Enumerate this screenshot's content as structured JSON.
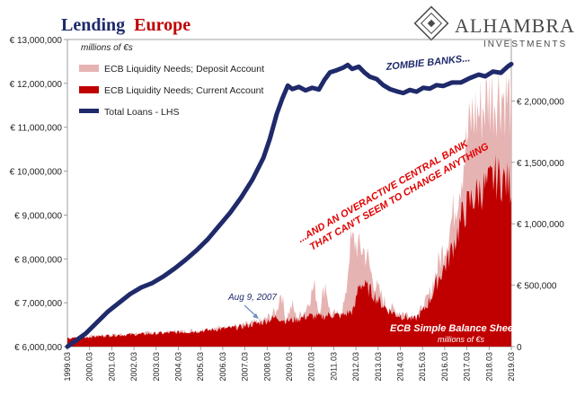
{
  "chart_data": {
    "type": "area",
    "title": {
      "prefix": "Lending",
      "highlight": "Europe",
      "prefix_color": "#1f2a6b",
      "highlight_color": "#c00000"
    },
    "unit_note_top": "millions of €s",
    "unit_note_bottom": "millions of €s",
    "brand": {
      "name": "ALHAMBRA",
      "tagline": "INVESTMENTS",
      "color": "#4a4a4a"
    },
    "legend": {
      "placement": "top-left",
      "items": [
        {
          "label": "ECB Liquidity Needs; Deposit Account",
          "color": "#e6b3b3",
          "kind": "area"
        },
        {
          "label": "ECB Liquidity Needs; Current Account",
          "color": "#c00000",
          "kind": "area"
        },
        {
          "label": "Total Loans - LHS",
          "color": "#1f2a6b",
          "kind": "line"
        }
      ]
    },
    "left_axis": {
      "min": 6000000,
      "max": 13000000,
      "ticks": [
        {
          "value": 6000000,
          "label": "€ 6,000,000"
        },
        {
          "value": 7000000,
          "label": "€ 7,000,000"
        },
        {
          "value": 8000000,
          "label": "€ 8,000,000"
        },
        {
          "value": 9000000,
          "label": "€ 9,000,000"
        },
        {
          "value": 10000000,
          "label": "€ 10,000,000"
        },
        {
          "value": 11000000,
          "label": "€ 11,000,000"
        },
        {
          "value": 12000000,
          "label": "€ 12,000,000"
        },
        {
          "value": 13000000,
          "label": "€ 13,000,000"
        }
      ]
    },
    "right_axis": {
      "min": 0,
      "max": 2500000,
      "ticks": [
        {
          "value": 0,
          "label": "0"
        },
        {
          "value": 500000,
          "label": "€ 500,000"
        },
        {
          "value": 1000000,
          "label": "€ 1,000,000"
        },
        {
          "value": 1500000,
          "label": "€ 1,500,000"
        },
        {
          "value": 2000000,
          "label": "€ 2,000,000"
        }
      ]
    },
    "x_axis": {
      "min": 1999.17,
      "max": 2019.17,
      "tick_labels": [
        "1999.03",
        "2000.03",
        "2001.03",
        "2002.03",
        "2003.03",
        "2004.03",
        "2005.03",
        "2006.03",
        "2007.03",
        "2008.03",
        "2009.03",
        "2010.03",
        "2011.03",
        "2012.03",
        "2013.03",
        "2014.03",
        "2015.03",
        "2016.03",
        "2017.03",
        "2018.03",
        "2019.03"
      ]
    },
    "series": [
      {
        "name": "Total Loans - LHS",
        "axis": "left",
        "color": "#1f2a6b",
        "points": [
          [
            1999.17,
            6000000
          ],
          [
            2000.0,
            6300000
          ],
          [
            2000.5,
            6550000
          ],
          [
            2001.0,
            6800000
          ],
          [
            2001.5,
            7000000
          ],
          [
            2002.0,
            7200000
          ],
          [
            2002.5,
            7350000
          ],
          [
            2003.0,
            7450000
          ],
          [
            2003.5,
            7600000
          ],
          [
            2004.0,
            7780000
          ],
          [
            2004.5,
            7980000
          ],
          [
            2005.0,
            8200000
          ],
          [
            2005.5,
            8450000
          ],
          [
            2006.0,
            8750000
          ],
          [
            2006.5,
            9050000
          ],
          [
            2007.0,
            9400000
          ],
          [
            2007.5,
            9800000
          ],
          [
            2008.0,
            10300000
          ],
          [
            2008.3,
            10750000
          ],
          [
            2008.6,
            11300000
          ],
          [
            2008.85,
            11650000
          ],
          [
            2009.1,
            11950000
          ],
          [
            2009.3,
            11870000
          ],
          [
            2009.6,
            11920000
          ],
          [
            2009.9,
            11840000
          ],
          [
            2010.2,
            11900000
          ],
          [
            2010.5,
            11860000
          ],
          [
            2010.75,
            12080000
          ],
          [
            2011.0,
            12250000
          ],
          [
            2011.3,
            12300000
          ],
          [
            2011.6,
            12360000
          ],
          [
            2011.8,
            12420000
          ],
          [
            2012.0,
            12330000
          ],
          [
            2012.3,
            12380000
          ],
          [
            2012.55,
            12250000
          ],
          [
            2012.8,
            12150000
          ],
          [
            2013.1,
            12100000
          ],
          [
            2013.4,
            11960000
          ],
          [
            2013.7,
            11870000
          ],
          [
            2014.0,
            11820000
          ],
          [
            2014.3,
            11780000
          ],
          [
            2014.6,
            11850000
          ],
          [
            2014.9,
            11810000
          ],
          [
            2015.2,
            11900000
          ],
          [
            2015.5,
            11880000
          ],
          [
            2015.8,
            11960000
          ],
          [
            2016.1,
            11940000
          ],
          [
            2016.5,
            12020000
          ],
          [
            2016.9,
            12020000
          ],
          [
            2017.3,
            12120000
          ],
          [
            2017.7,
            12200000
          ],
          [
            2018.0,
            12160000
          ],
          [
            2018.35,
            12270000
          ],
          [
            2018.7,
            12240000
          ],
          [
            2019.0,
            12380000
          ],
          [
            2019.17,
            12440000
          ]
        ]
      },
      {
        "name": "ECB Liquidity Needs; Deposit Account",
        "axis": "right",
        "color": "#e6b3b3",
        "points": [
          [
            1999.17,
            70000
          ],
          [
            2001.0,
            95000
          ],
          [
            2003.0,
            110000
          ],
          [
            2005.0,
            130000
          ],
          [
            2007.0,
            170000
          ],
          [
            2008.0,
            210000
          ],
          [
            2008.6,
            290000
          ],
          [
            2008.8,
            460000
          ],
          [
            2009.0,
            220000
          ],
          [
            2009.3,
            340000
          ],
          [
            2009.5,
            230000
          ],
          [
            2009.9,
            300000
          ],
          [
            2010.3,
            500000
          ],
          [
            2010.5,
            280000
          ],
          [
            2010.8,
            520000
          ],
          [
            2011.0,
            270000
          ],
          [
            2011.4,
            250000
          ],
          [
            2011.7,
            380000
          ],
          [
            2011.9,
            830000
          ],
          [
            2012.1,
            860000
          ],
          [
            2012.3,
            800000
          ],
          [
            2012.5,
            790000
          ],
          [
            2012.7,
            720000
          ],
          [
            2012.9,
            560000
          ],
          [
            2013.2,
            450000
          ],
          [
            2013.6,
            320000
          ],
          [
            2014.0,
            290000
          ],
          [
            2014.4,
            270000
          ],
          [
            2014.8,
            240000
          ],
          [
            2015.2,
            310000
          ],
          [
            2015.5,
            430000
          ],
          [
            2015.9,
            680000
          ],
          [
            2016.3,
            890000
          ],
          [
            2016.7,
            1200000
          ],
          [
            2017.0,
            1500000
          ],
          [
            2017.4,
            1880000
          ],
          [
            2017.8,
            1920000
          ],
          [
            2018.1,
            2020000
          ],
          [
            2018.4,
            2040000
          ],
          [
            2018.7,
            2080000
          ],
          [
            2019.0,
            2000000
          ],
          [
            2019.17,
            2010000
          ]
        ]
      },
      {
        "name": "ECB Liquidity Needs; Current Account",
        "axis": "right",
        "color": "#c00000",
        "points": [
          [
            1999.17,
            65000
          ],
          [
            2001.0,
            90000
          ],
          [
            2003.0,
            105000
          ],
          [
            2005.0,
            125000
          ],
          [
            2007.0,
            160000
          ],
          [
            2008.0,
            200000
          ],
          [
            2008.6,
            240000
          ],
          [
            2009.0,
            210000
          ],
          [
            2009.5,
            220000
          ],
          [
            2010.0,
            250000
          ],
          [
            2010.6,
            240000
          ],
          [
            2011.0,
            260000
          ],
          [
            2011.5,
            250000
          ],
          [
            2011.9,
            280000
          ],
          [
            2012.1,
            300000
          ],
          [
            2012.3,
            520000
          ],
          [
            2012.5,
            500000
          ],
          [
            2012.8,
            460000
          ],
          [
            2013.2,
            370000
          ],
          [
            2013.6,
            300000
          ],
          [
            2014.0,
            260000
          ],
          [
            2014.4,
            240000
          ],
          [
            2014.8,
            220000
          ],
          [
            2015.2,
            290000
          ],
          [
            2015.5,
            380000
          ],
          [
            2015.9,
            560000
          ],
          [
            2016.3,
            700000
          ],
          [
            2016.7,
            900000
          ],
          [
            2017.0,
            1080000
          ],
          [
            2017.4,
            1200000
          ],
          [
            2017.8,
            1280000
          ],
          [
            2018.1,
            1300000
          ],
          [
            2018.4,
            1380000
          ],
          [
            2018.7,
            1370000
          ],
          [
            2019.0,
            1330000
          ],
          [
            2019.17,
            1320000
          ]
        ]
      }
    ],
    "annotations": [
      {
        "text": "ZOMBIE BANKS...",
        "color": "#1f2a6b"
      },
      {
        "lines": [
          "...AND AN OVERACTIVE CENTRAL BANK",
          "THAT CAN'T SEEM TO CHANGE ANYTHING"
        ],
        "color": "#e00000"
      },
      {
        "text": "Aug 9, 2007",
        "color": "#1f2a6b"
      },
      {
        "text": "ECB Simple Balance Sheet",
        "color": "#ffffff"
      }
    ]
  }
}
